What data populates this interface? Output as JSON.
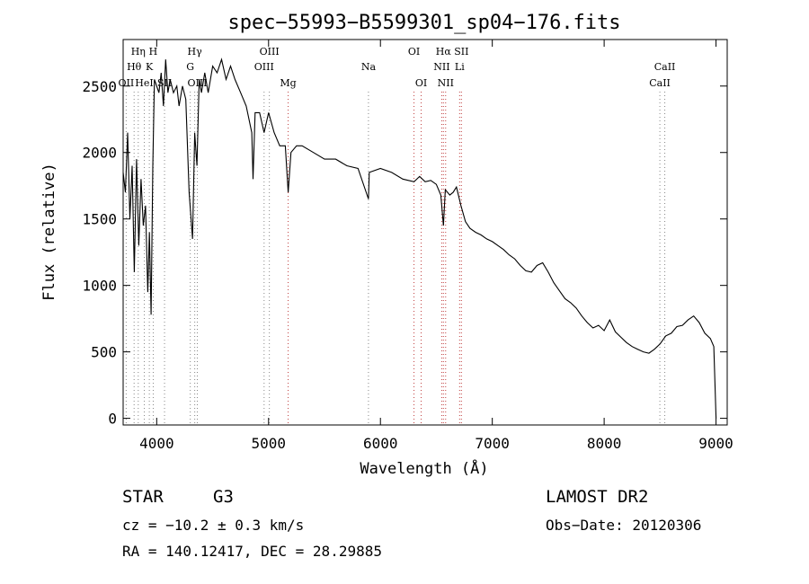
{
  "footer": {
    "object_class": "STAR",
    "subclass": "G3",
    "survey": "LAMOST DR2",
    "cz": "cz = −10.2 ± 0.3 km/s",
    "obs_date": "Obs−Date: 20120306",
    "coords": "RA = 140.12417, DEC =  28.29885"
  },
  "colors": {
    "spectrum": "#000000",
    "balmer_line": "#888888",
    "other_line": "#c04040"
  },
  "chart_data": {
    "type": "line",
    "title": "spec−55993−B5599301_sp04−176.fits",
    "xlabel": "Wavelength (Å)",
    "ylabel": "Flux (relative)",
    "xlim": [
      3700,
      9100
    ],
    "ylim": [
      -50,
      2850
    ],
    "x_ticks": [
      4000,
      5000,
      6000,
      7000,
      8000,
      9000
    ],
    "y_ticks": [
      0,
      500,
      1000,
      1500,
      2000,
      2500
    ],
    "grid": false,
    "legend": "none",
    "series": [
      {
        "x": [
          3700,
          3720,
          3740,
          3760,
          3780,
          3800,
          3820,
          3840,
          3860,
          3880,
          3900,
          3920,
          3935,
          3950,
          3965,
          3980,
          4000,
          4020,
          4040,
          4060,
          4080,
          4100,
          4120,
          4150,
          4180,
          4200,
          4230,
          4260,
          4290,
          4320,
          4340,
          4360,
          4380,
          4400,
          4430,
          4460,
          4500,
          4540,
          4580,
          4620,
          4660,
          4700,
          4750,
          4800,
          4850,
          4861,
          4880,
          4920,
          4960,
          5000,
          5050,
          5100,
          5150,
          5175,
          5200,
          5250,
          5300,
          5400,
          5500,
          5600,
          5700,
          5800,
          5893,
          5900,
          6000,
          6100,
          6200,
          6300,
          6350,
          6400,
          6450,
          6500,
          6540,
          6563,
          6580,
          6620,
          6650,
          6680,
          6720,
          6760,
          6800,
          6850,
          6900,
          6950,
          7000,
          7050,
          7100,
          7150,
          7200,
          7250,
          7300,
          7350,
          7400,
          7450,
          7500,
          7550,
          7600,
          7650,
          7700,
          7750,
          7800,
          7850,
          7900,
          7950,
          8000,
          8050,
          8100,
          8150,
          8200,
          8250,
          8300,
          8350,
          8400,
          8450,
          8500,
          8550,
          8600,
          8650,
          8700,
          8750,
          8800,
          8850,
          8900,
          8950,
          8980,
          9000
        ],
        "y": [
          1850,
          1700,
          2150,
          1500,
          1900,
          1100,
          1950,
          1300,
          1800,
          1450,
          1600,
          950,
          1400,
          780,
          1900,
          2550,
          2500,
          2450,
          2600,
          2350,
          2700,
          2450,
          2550,
          2450,
          2500,
          2350,
          2500,
          2400,
          1700,
          1350,
          2150,
          1900,
          2550,
          2450,
          2600,
          2450,
          2650,
          2600,
          2700,
          2550,
          2650,
          2550,
          2450,
          2350,
          2150,
          1800,
          2300,
          2300,
          2150,
          2300,
          2150,
          2050,
          2050,
          1700,
          2000,
          2050,
          2050,
          2000,
          1950,
          1950,
          1900,
          1880,
          1650,
          1850,
          1880,
          1850,
          1800,
          1780,
          1820,
          1780,
          1790,
          1760,
          1680,
          1450,
          1720,
          1680,
          1700,
          1740,
          1600,
          1480,
          1430,
          1400,
          1380,
          1350,
          1330,
          1300,
          1270,
          1230,
          1200,
          1150,
          1110,
          1100,
          1150,
          1170,
          1100,
          1020,
          960,
          900,
          870,
          830,
          770,
          720,
          680,
          700,
          660,
          740,
          650,
          610,
          570,
          540,
          520,
          500,
          490,
          520,
          560,
          620,
          640,
          690,
          700,
          740,
          770,
          720,
          640,
          600,
          540,
          0
        ]
      }
    ],
    "line_markers": [
      {
        "wl": 3727,
        "labels": [
          "OII"
        ],
        "color": "balmer",
        "tier": 3
      },
      {
        "wl": 3798,
        "labels": [
          "Hθ"
        ],
        "color": "balmer",
        "tier": 2
      },
      {
        "wl": 3835,
        "labels": [
          "Hη"
        ],
        "color": "balmer",
        "tier": 1
      },
      {
        "wl": 3889,
        "labels": [
          "HeI"
        ],
        "color": "balmer",
        "tier": 3
      },
      {
        "wl": 3934,
        "labels": [
          "K"
        ],
        "color": "balmer",
        "tier": 2
      },
      {
        "wl": 3969,
        "labels": [
          "H"
        ],
        "color": "balmer",
        "tier": 1
      },
      {
        "wl": 4070,
        "labels": [
          "SII"
        ],
        "color": "balmer",
        "tier": 3
      },
      {
        "wl": 4300,
        "labels": [
          "G"
        ],
        "color": "balmer",
        "tier": 2
      },
      {
        "wl": 4340,
        "labels": [
          "Hγ"
        ],
        "color": "balmer",
        "tier": 1
      },
      {
        "wl": 4363,
        "labels": [
          "OIII"
        ],
        "color": "balmer",
        "tier": 3
      },
      {
        "wl": 4960,
        "labels": [
          "OIII"
        ],
        "color": "balmer",
        "tier": 2
      },
      {
        "wl": 5007,
        "labels": [
          "OIII"
        ],
        "color": "balmer",
        "tier": 1
      },
      {
        "wl": 5175,
        "labels": [
          "Mg"
        ],
        "color": "other",
        "tier": 3
      },
      {
        "wl": 5893,
        "labels": [
          "Na"
        ],
        "color": "balmer",
        "tier": 2
      },
      {
        "wl": 6300,
        "labels": [
          "OI"
        ],
        "color": "other",
        "tier": 1
      },
      {
        "wl": 6364,
        "labels": [
          "OI"
        ],
        "color": "other",
        "tier": 3
      },
      {
        "wl": 6548,
        "labels": [
          "NII"
        ],
        "color": "other",
        "tier": 2
      },
      {
        "wl": 6563,
        "labels": [
          "Hα"
        ],
        "color": "other",
        "tier": 1
      },
      {
        "wl": 6583,
        "labels": [
          "NII"
        ],
        "color": "other",
        "tier": 3
      },
      {
        "wl": 6708,
        "labels": [
          "Li"
        ],
        "color": "other",
        "tier": 2
      },
      {
        "wl": 6724,
        "labels": [
          "SII"
        ],
        "color": "other",
        "tier": 1
      },
      {
        "wl": 8498,
        "labels": [
          "CaII"
        ],
        "color": "balmer",
        "tier": 3
      },
      {
        "wl": 8542,
        "labels": [
          "CaII"
        ],
        "color": "balmer",
        "tier": 2
      }
    ]
  }
}
